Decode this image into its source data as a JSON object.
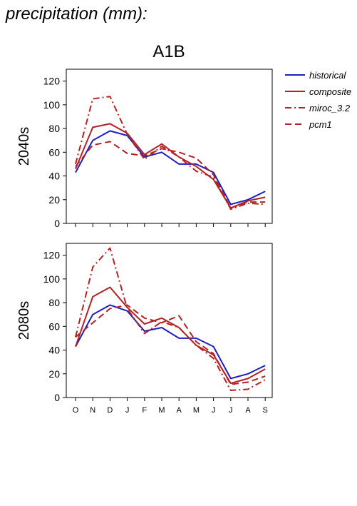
{
  "heading": "precipitation (mm):",
  "chart_data": {
    "type": "line",
    "title": "A1B",
    "categories": [
      "O",
      "N",
      "D",
      "J",
      "F",
      "M",
      "A",
      "M",
      "J",
      "J",
      "A",
      "S"
    ],
    "ylim": [
      0,
      130
    ],
    "yticks": [
      0,
      20,
      40,
      60,
      80,
      100,
      120
    ],
    "grid": false,
    "legend_position": "top-right, outside plot",
    "series_styles": [
      {
        "name": "historical",
        "color": "#1f1fbf",
        "dash": "solid"
      },
      {
        "name": "composite",
        "color": "#b22222",
        "dash": "solid"
      },
      {
        "name": "miroc_3.2",
        "color": "#b22222",
        "dash": "dashdot"
      },
      {
        "name": "pcm1",
        "color": "#b22222",
        "dash": "dashed"
      }
    ],
    "panels": [
      {
        "ylabel": "2040s",
        "series": [
          {
            "name": "historical",
            "values": [
              43,
              70,
              78,
              74,
              56,
              60,
              50,
              50,
              43,
              16,
              20,
              27
            ]
          },
          {
            "name": "composite",
            "values": [
              46,
              81,
              84,
              76,
              58,
              67,
              56,
              48,
              37,
              13,
              19,
              22
            ]
          },
          {
            "name": "miroc_3.2",
            "values": [
              50,
              105,
              107,
              75,
              54,
              65,
              56,
              44,
              39,
              12,
              17,
              16
            ]
          },
          {
            "name": "pcm1",
            "values": [
              48,
              66,
              69,
              59,
              57,
              63,
              60,
              55,
              41,
              13,
              18,
              18
            ]
          }
        ]
      },
      {
        "ylabel": "2080s",
        "series": [
          {
            "name": "historical",
            "values": [
              43,
              70,
              78,
              73,
              56,
              59,
              50,
              50,
              43,
              16,
              20,
              27
            ]
          },
          {
            "name": "composite",
            "values": [
              43,
              85,
              93,
              76,
              62,
              67,
              59,
              44,
              36,
              12,
              16,
              24
            ]
          },
          {
            "name": "miroc_3.2",
            "values": [
              51,
              110,
              126,
              75,
              54,
              64,
              59,
              44,
              33,
              6,
              7,
              15
            ]
          },
          {
            "name": "pcm1",
            "values": [
              51,
              63,
              75,
              78,
              67,
              63,
              69,
              47,
              37,
              11,
              13,
              18
            ]
          }
        ]
      }
    ]
  }
}
